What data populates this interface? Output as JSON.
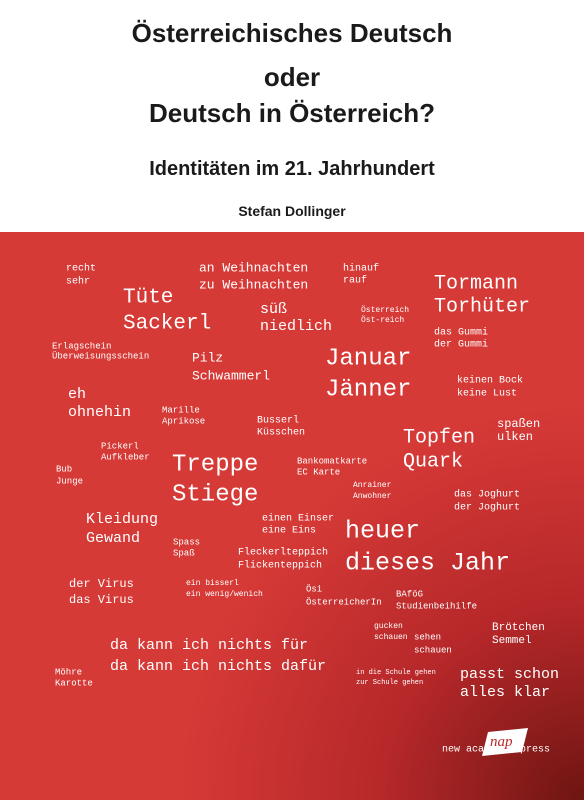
{
  "header": {
    "title_lines": [
      "Österreichisches Deutsch",
      "oder",
      "Deutsch in Österreich?"
    ],
    "subtitle": "Identitäten im 21. Jahrhundert",
    "author": "Stefan Dollinger"
  },
  "word_pairs": [
    [
      "recht",
      "sehr"
    ],
    [
      "an Weihnachten",
      "zu Weihnachten"
    ],
    [
      "hinauf",
      "rauf"
    ],
    [
      "Tormann",
      "Torhüter"
    ],
    [
      "Tüte",
      "Sackerl"
    ],
    [
      "süß",
      "niedlich"
    ],
    [
      "Österreich",
      "Öst-reich"
    ],
    [
      "das Gummi",
      "der Gummi"
    ],
    [
      "Erlagschein",
      "Überweisungsschein"
    ],
    [
      "Pilz",
      "Schwammerl"
    ],
    [
      "Januar",
      "Jänner"
    ],
    [
      "keinen Bock",
      "keine Lust"
    ],
    [
      "eh",
      "ohnehin"
    ],
    [
      "Marille",
      "Aprikose"
    ],
    [
      "Busserl",
      "Küsschen"
    ],
    [
      "Topfen",
      "Quark"
    ],
    [
      "spaßen",
      "ulken"
    ],
    [
      "Pickerl",
      "Aufkleber"
    ],
    [
      "Treppe",
      "Stiege"
    ],
    [
      "Bankomatkarte",
      "EC Karte"
    ],
    [
      "Bub",
      "Junge"
    ],
    [
      "Anrainer",
      "Anwohner"
    ],
    [
      "das Joghurt",
      "der Joghurt"
    ],
    [
      "Kleidung",
      "Gewand"
    ],
    [
      "einen Einser",
      "eine Eins"
    ],
    [
      "heuer",
      "dieses Jahr"
    ],
    [
      "Spass",
      "Spaß"
    ],
    [
      "Fleckerlteppich",
      "Flickenteppich"
    ],
    [
      "der Virus",
      "das Virus"
    ],
    [
      "ein bisserl",
      "ein wenig/wenich"
    ],
    [
      "Ösi",
      "ÖsterreicherIn"
    ],
    [
      "BAföG",
      "Studienbeihilfe"
    ],
    [
      "gucken",
      "schauen"
    ],
    [
      "Brötchen",
      "Semmel"
    ],
    [
      "sehen",
      "schauen"
    ],
    [
      "da kann ich nichts für",
      "da kann ich nichts dafür"
    ],
    [
      "Möhre",
      "Karotte"
    ],
    [
      "in die Schule gehen",
      "zur Schule gehen"
    ],
    [
      "passt schon",
      "alles klar"
    ]
  ],
  "publisher": {
    "name": "new academic press",
    "logo": "nap"
  }
}
